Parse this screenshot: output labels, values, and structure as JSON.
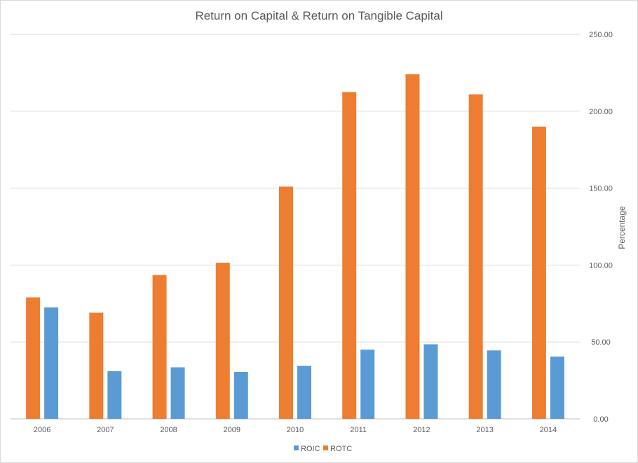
{
  "chart_data": {
    "type": "bar",
    "title": "Return on Capital & Return on Tangible Capital",
    "xlabel": "",
    "ylabel": "Percentage",
    "categories": [
      "2006",
      "2007",
      "2008",
      "2009",
      "2010",
      "2011",
      "2012",
      "2013",
      "2014"
    ],
    "series": [
      {
        "name": "ROIC",
        "color": "#5b9bd5",
        "values": [
          72.5,
          31.0,
          33.5,
          30.5,
          34.5,
          45.0,
          48.5,
          44.5,
          40.5
        ]
      },
      {
        "name": "ROTC",
        "color": "#ed7d31",
        "values": [
          79.0,
          69.0,
          93.5,
          101.5,
          151.0,
          212.5,
          224.0,
          211.0,
          190.0
        ]
      }
    ],
    "ylim": [
      0,
      250
    ],
    "yticks": [
      "0.00",
      "50.00",
      "100.00",
      "150.00",
      "200.00",
      "250.00"
    ],
    "ytick_values": [
      0,
      50,
      100,
      150,
      200,
      250
    ],
    "bar_order": [
      "ROTC",
      "ROIC"
    ],
    "y_axis_side": "right",
    "grid": true,
    "legend_position": "bottom"
  }
}
